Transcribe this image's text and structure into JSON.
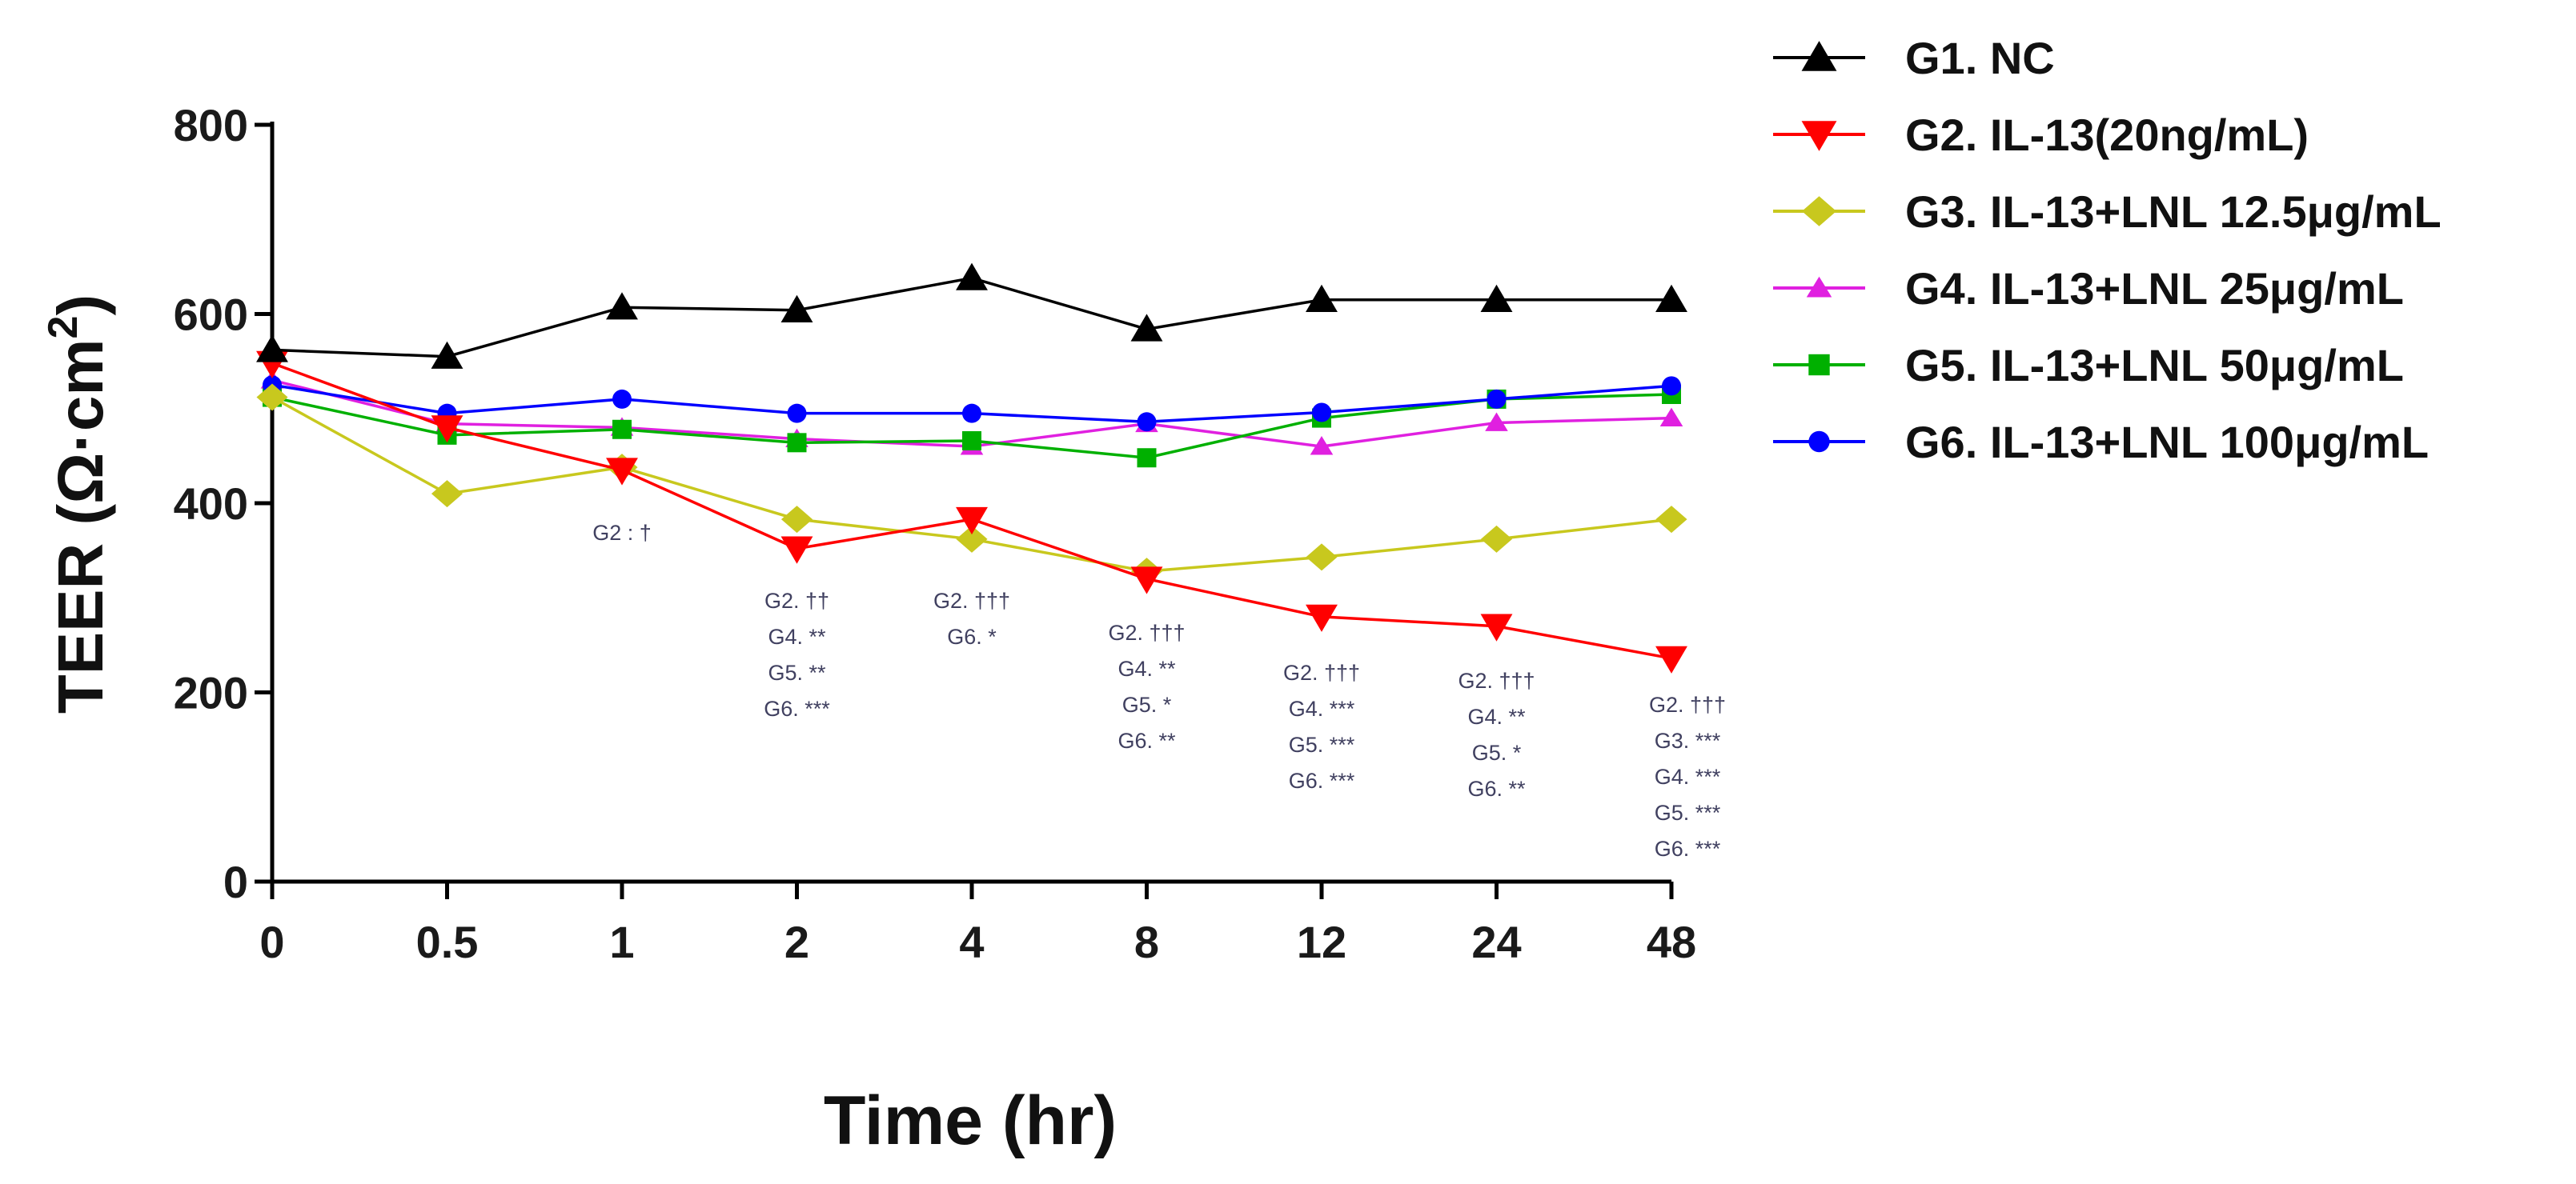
{
  "chart_data": {
    "type": "line",
    "title": "",
    "xlabel": "Time (hr)",
    "ylabel_main": "TEER (Ω·cm",
    "ylabel_sup": "2",
    "ylabel_close": ")",
    "categories": [
      "0",
      "0.5",
      "1",
      "2",
      "4",
      "8",
      "12",
      "24",
      "48"
    ],
    "ylim": [
      0,
      800
    ],
    "yticks": [
      "0",
      "200",
      "400",
      "600",
      "800"
    ],
    "ytick_values": [
      0,
      200,
      400,
      600,
      800
    ],
    "grid": false,
    "legend_position": "top-right",
    "series": [
      {
        "name": "G1. NC",
        "color": "#000000",
        "marker": "triangle-up",
        "values": [
          562,
          555,
          607,
          604,
          638,
          584,
          615,
          615,
          615
        ]
      },
      {
        "name": "G2. IL-13(20ng/mL)",
        "color": "#ff0000",
        "marker": "triangle-down",
        "values": [
          548,
          480,
          435,
          352,
          383,
          320,
          280,
          270,
          236
        ]
      },
      {
        "name": "G3. IL-13+LNL 12.5μg/mL",
        "color": "#c8c81e",
        "marker": "diamond",
        "values": [
          512,
          410,
          438,
          383,
          362,
          328,
          343,
          362,
          383
        ]
      },
      {
        "name": "G4. IL-13+LNL 25μg/mL",
        "color": "#e020e0",
        "marker": "triangle-up-small",
        "values": [
          530,
          484,
          480,
          468,
          460,
          484,
          460,
          485,
          490
        ]
      },
      {
        "name": "G5. IL-13+LNL 50μg/mL",
        "color": "#00b000",
        "marker": "square",
        "values": [
          512,
          472,
          478,
          464,
          466,
          448,
          490,
          510,
          515
        ]
      },
      {
        "name": "G6. IL-13+LNL 100μg/mL",
        "color": "#0000ff",
        "marker": "circle",
        "values": [
          525,
          495,
          510,
          495,
          495,
          486,
          496,
          510,
          524
        ]
      }
    ],
    "annotations": [
      {
        "category": "1",
        "lines": [
          "G2 : †"
        ]
      },
      {
        "category": "2",
        "lines": [
          "G2. ††",
          "G4. **",
          "G5. **",
          "G6. ***"
        ]
      },
      {
        "category": "4",
        "lines": [
          "G2. †††",
          "G6. *"
        ]
      },
      {
        "category": "8",
        "lines": [
          "G2. †††",
          "G4. **",
          "G5. *",
          "G6. **"
        ]
      },
      {
        "category": "12",
        "lines": [
          "G2. †††",
          "G4. ***",
          "G5. ***",
          "G6. ***"
        ]
      },
      {
        "category": "24",
        "lines": [
          "G2. †††",
          "G4. **",
          "G5. *",
          "G6. **"
        ]
      },
      {
        "category": "48",
        "lines": [
          "G2. †††",
          "G3. ***",
          "G4. ***",
          "G5. ***",
          "G6. ***"
        ]
      }
    ]
  }
}
